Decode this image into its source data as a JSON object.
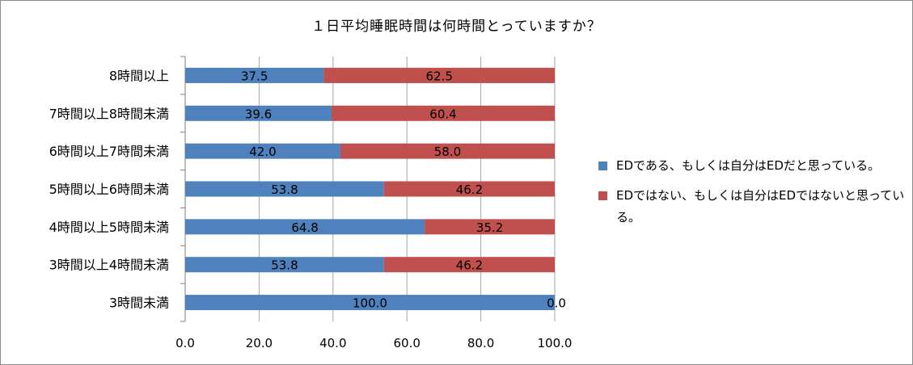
{
  "chart_data": {
    "type": "bar",
    "orientation": "horizontal",
    "stacked": true,
    "title": "１日平均睡眠時間は何時間とっていますか？",
    "categories": [
      "8時間以上",
      "7時間以上8時間未満",
      "6時間以上7時間未満",
      "5時間以上6時間未満",
      "4時間以上5時間未満",
      "3時間以上4時間未満",
      "3時間未満"
    ],
    "series": [
      {
        "name": "EDである、もしくは自分はEDだと思っている。",
        "color": "#4f81bd",
        "values": [
          37.5,
          39.6,
          42.0,
          53.8,
          64.8,
          53.8,
          100.0
        ]
      },
      {
        "name": "EDではない、もしくは自分はEDではないと思っている。",
        "color": "#c0504d",
        "values": [
          62.5,
          60.4,
          58.0,
          46.2,
          35.2,
          46.2,
          0.0
        ]
      }
    ],
    "xlim": [
      0,
      100
    ],
    "xticks": [
      "0.0",
      "20.0",
      "40.0",
      "60.0",
      "80.0",
      "100.0"
    ],
    "grid": true,
    "legend_position": "right"
  }
}
